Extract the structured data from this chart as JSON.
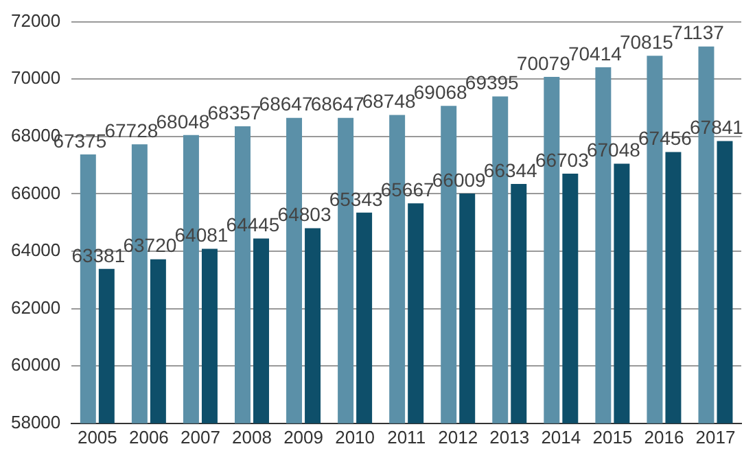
{
  "chart_data": {
    "type": "bar",
    "categories": [
      "2005",
      "2006",
      "2007",
      "2008",
      "2009",
      "2010",
      "2011",
      "2012",
      "2013",
      "2014",
      "2015",
      "2016",
      "2017"
    ],
    "series": [
      {
        "color": "#5b90a8",
        "values": [
          67375,
          67728,
          68048,
          68357,
          68647,
          68647,
          68748,
          69068,
          69395,
          70079,
          70414,
          70815,
          71137
        ]
      },
      {
        "color": "#0e4f6a",
        "values": [
          63381,
          63720,
          64081,
          64445,
          64803,
          65343,
          65667,
          66009,
          66344,
          66703,
          67048,
          67456,
          67841
        ]
      }
    ],
    "ylim": [
      58000,
      72000
    ],
    "yticks": [
      58000,
      60000,
      62000,
      64000,
      66000,
      68000,
      70000,
      72000
    ],
    "grid": "y",
    "data_labels": true
  }
}
